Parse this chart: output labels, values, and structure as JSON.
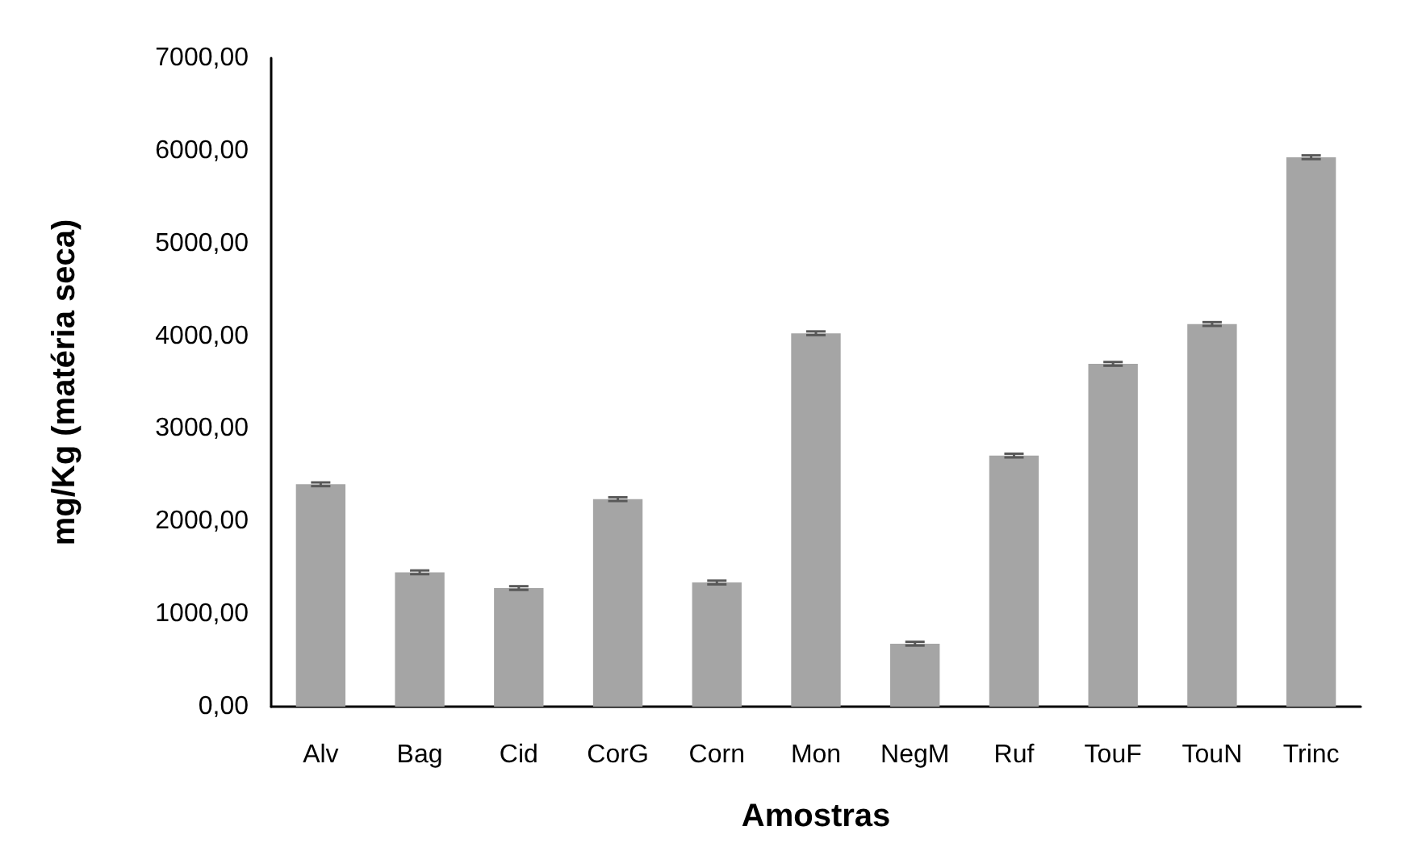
{
  "chart_data": {
    "type": "bar",
    "xlabel": "Amostras",
    "ylabel": "mg/Kg (matéria seca)",
    "categories": [
      "Alv",
      "Bag",
      "Cid",
      "CorG",
      "Corn",
      "Mon",
      "NegM",
      "Ruf",
      "TouF",
      "TouN",
      "Trinc"
    ],
    "values": [
      2400,
      1450,
      1280,
      2240,
      1340,
      4030,
      680,
      2710,
      3700,
      4130,
      5930
    ],
    "errors": [
      20,
      20,
      20,
      20,
      20,
      20,
      20,
      20,
      20,
      20,
      20
    ],
    "color": "#a5a5a5",
    "ylim": [
      0,
      7000
    ],
    "yticks": [
      {
        "value": 0,
        "label": "0,00"
      },
      {
        "value": 1000,
        "label": "1000,00"
      },
      {
        "value": 2000,
        "label": "2000,00"
      },
      {
        "value": 3000,
        "label": "3000,00"
      },
      {
        "value": 4000,
        "label": "4000,00"
      },
      {
        "value": 5000,
        "label": "5000,00"
      },
      {
        "value": 6000,
        "label": "6000,00"
      },
      {
        "value": 7000,
        "label": "7000,00"
      }
    ],
    "grid": false
  }
}
